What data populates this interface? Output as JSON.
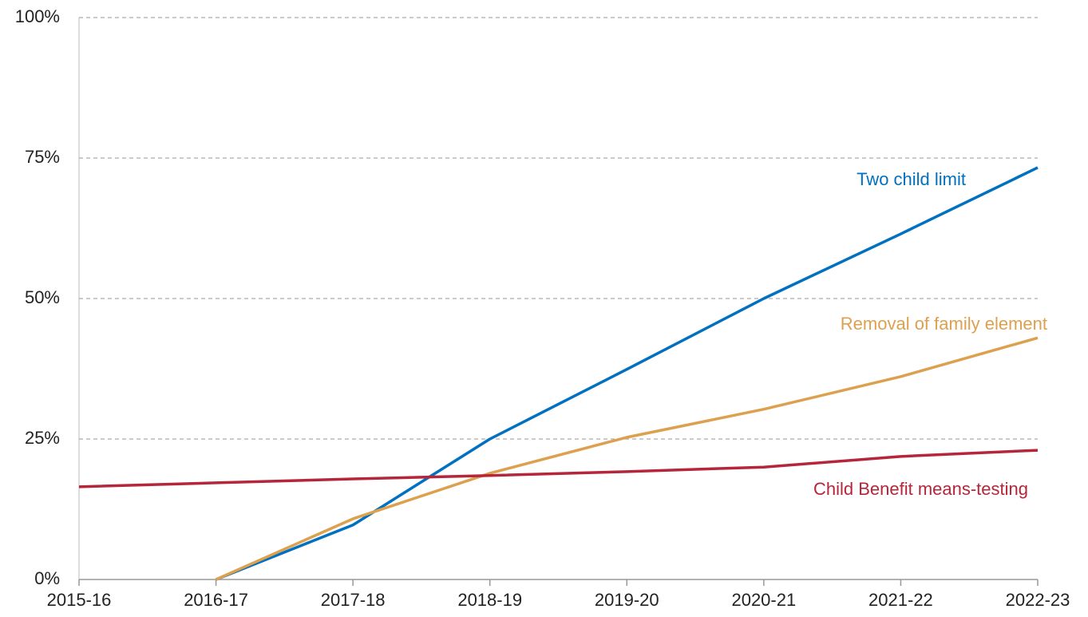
{
  "chart_data": {
    "type": "line",
    "categories": [
      "2015-16",
      "2016-17",
      "2017-18",
      "2018-19",
      "2019-20",
      "2020-21",
      "2021-22",
      "2022-23"
    ],
    "series": [
      {
        "name": "Two child limit",
        "color": "#0070c0",
        "values": [
          null,
          0,
          9.7,
          25,
          37.4,
          50,
          61.5,
          73.3
        ]
      },
      {
        "name": "Removal of family element",
        "color": "#dda04f",
        "values": [
          null,
          0,
          10.8,
          18.9,
          25.3,
          30.3,
          36.1,
          43
        ]
      },
      {
        "name": "Child Benefit means-testing",
        "color": "#b5263b",
        "values": [
          16.5,
          17.2,
          17.9,
          18.5,
          19.2,
          20,
          21.9,
          23
        ]
      }
    ],
    "ylim": [
      0,
      100
    ],
    "yticks": [
      {
        "value": 0,
        "label": "0%"
      },
      {
        "value": 25,
        "label": "25%"
      },
      {
        "value": 50,
        "label": "50%"
      },
      {
        "value": 75,
        "label": "75%"
      },
      {
        "value": 100,
        "label": "100%"
      }
    ],
    "grid": true
  }
}
